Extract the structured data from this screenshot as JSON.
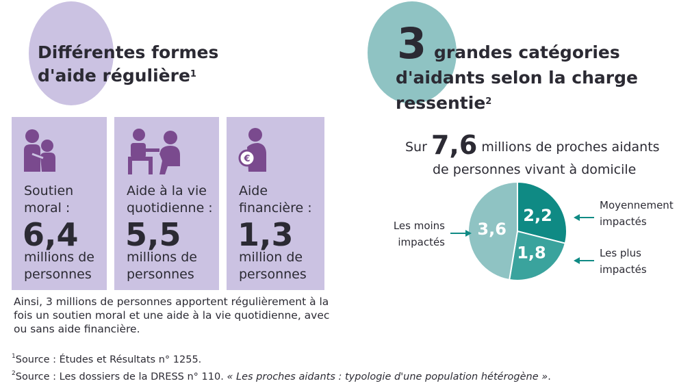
{
  "left": {
    "title": "Différentes formes d'aide régulière",
    "title_note": "1",
    "cards": [
      {
        "label_line1": "Soutien",
        "label_line2": "moral :",
        "value": "6,4",
        "unit_line1": "millions de",
        "unit_line2": "personnes",
        "icon": "person-comforting-icon"
      },
      {
        "label_line1": "Aide à la vie",
        "label_line2": "quotidienne :",
        "value": "5,5",
        "unit_line1": "millions de",
        "unit_line2": "personnes",
        "icon": "daily-help-icon"
      },
      {
        "label_line1": "Aide",
        "label_line2": "financière :",
        "value": "1,3",
        "unit_line1": "million de",
        "unit_line2": "personnes",
        "icon": "money-bag-icon"
      }
    ],
    "note": "Ainsi, 3 millions de personnes apportent régulièrement à la fois un soutien moral et une aide à la vie quotidienne, avec ou sans aide financière."
  },
  "right": {
    "big_number": "3",
    "title": "grandes catégories d'aidants selon la charge ressentie",
    "title_note": "2",
    "subtitle_pre": "Sur",
    "subtitle_value": "7,6",
    "subtitle_post": "millions de proches aidants",
    "subtitle_line2": "de personnes vivant à domicile",
    "labels": {
      "least": [
        "Les moins",
        "impactés"
      ],
      "moderate": [
        "Moyennement",
        "impactés"
      ],
      "most": [
        "Les plus",
        "impactés"
      ]
    }
  },
  "chart_data": {
    "type": "pie",
    "slices": [
      {
        "label": "Moyennement impactés",
        "value": 2.2,
        "display": "2,2",
        "color": "#0f8a84"
      },
      {
        "label": "Les plus impactés",
        "value": 1.8,
        "display": "1,8",
        "color": "#3aa39d"
      },
      {
        "label": "Les moins impactés",
        "value": 3.6,
        "display": "3,6",
        "color": "#8fc3c3"
      }
    ],
    "total": 7.6
  },
  "sources": {
    "s1_num": "1",
    "s1": "Source : Études et Résultats n° 1255.",
    "s2_num": "2",
    "s2_pre": "Source : Les dossiers de la DRESS n° 110. ",
    "s2_italic": "« Les proches aidants : typologie d'une population hétérogène »",
    "s2_end": "."
  },
  "colors": {
    "lavender": "#cbc2e2",
    "icon_purple": "#7a4a8e",
    "teal_light": "#8fc3c3",
    "teal_dark": "#0f8a84"
  }
}
